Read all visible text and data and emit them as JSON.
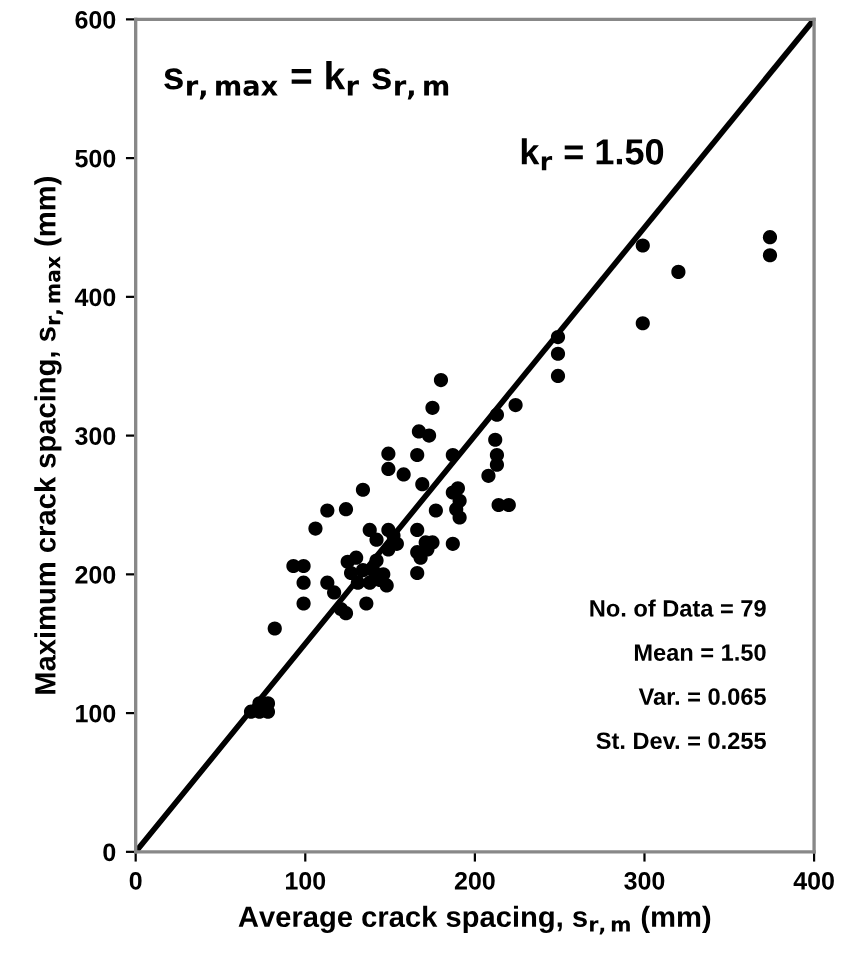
{
  "chart_data": {
    "type": "scatter",
    "xlabel": "Average crack spacing, s$_{r,m}$ (mm)",
    "ylabel": "Maximum crack spacing, s$_{r,max}$ (mm)",
    "xlim": [
      0,
      400
    ],
    "ylim": [
      0,
      600
    ],
    "xticks": [
      0,
      100,
      200,
      300,
      400
    ],
    "yticks": [
      0,
      100,
      200,
      300,
      400,
      500,
      600
    ],
    "grid": false,
    "legend": false,
    "annotations": [
      "s$_{r,max}$ = k$_{r}$ s$_{r,m}$",
      {
        "text": "k$_{r}$ = 1.50",
        "x": 327,
        "y": 490
      },
      "No. of Data = 79",
      "Mean = 1.50",
      "Var. = 0.065",
      "St. Dev. = 0.255"
    ],
    "series": [
      {
        "color": "#000000",
        "marker": "circle",
        "x": [
          68,
          73,
          78,
          78,
          73,
          82,
          93,
          99,
          99,
          99,
          106,
          113,
          113,
          117,
          121,
          124,
          124,
          125,
          127,
          131,
          134,
          134,
          136,
          138,
          140,
          142,
          144,
          138,
          142,
          148,
          149,
          149,
          149,
          149,
          154,
          158,
          166,
          166,
          166,
          166,
          167,
          169,
          171,
          173,
          175,
          175,
          177,
          180,
          187,
          187,
          187,
          189,
          191,
          191,
          208,
          212,
          213,
          213,
          213,
          214,
          220,
          224,
          249,
          249,
          249,
          299,
          299,
          320,
          374,
          374,
          130,
          146,
          152,
          168,
          172,
          190
        ],
        "values": [
          101,
          107,
          107,
          101,
          101,
          161,
          206,
          206,
          194,
          179,
          233,
          246,
          194,
          187,
          175,
          172,
          247,
          209,
          201,
          194,
          203,
          261,
          179,
          194,
          203,
          210,
          196,
          232,
          225,
          192,
          218,
          232,
          276,
          287,
          222,
          272,
          201,
          216,
          232,
          286,
          303,
          265,
          223,
          300,
          320,
          223,
          246,
          340,
          286,
          222,
          259,
          247,
          241,
          253,
          271,
          297,
          286,
          279,
          315,
          250,
          250,
          322,
          371,
          359,
          343,
          437,
          381,
          418,
          443,
          430,
          212,
          200,
          228,
          212,
          218,
          262
        ]
      },
      {
        "type": "line",
        "color": "#000000",
        "marker": "none",
        "line_style": "solid",
        "x": [
          0,
          400
        ],
        "values": [
          0,
          600
        ]
      }
    ]
  }
}
